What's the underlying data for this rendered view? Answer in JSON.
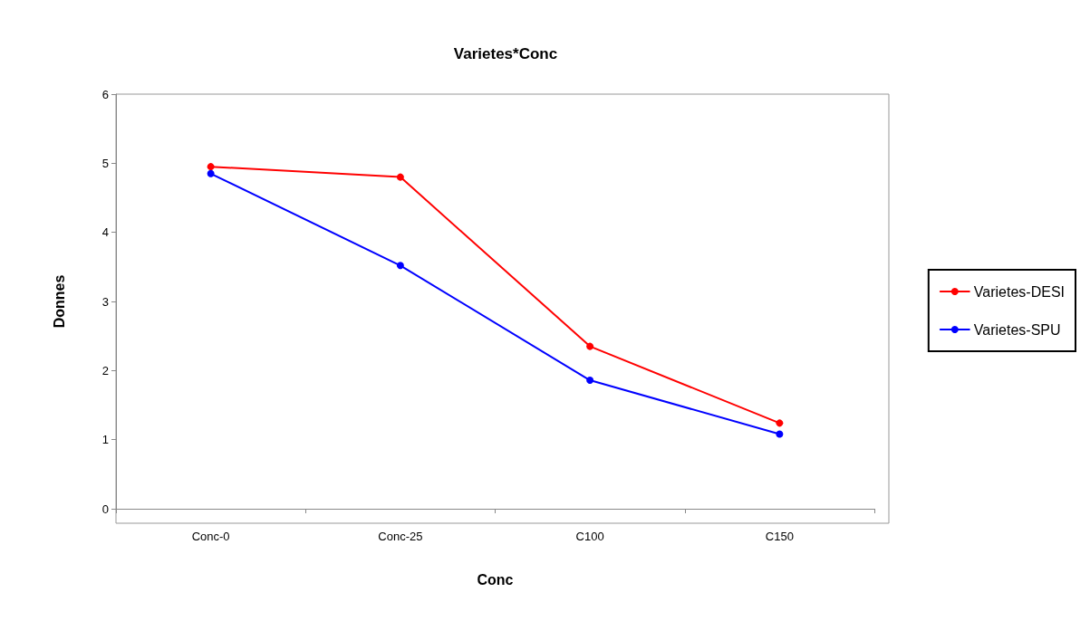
{
  "chart_data": {
    "type": "line",
    "title": "Varietes*Conc",
    "xlabel": "Conc",
    "ylabel": "Donnes",
    "categories": [
      "Conc-0",
      "Conc-25",
      "C100",
      "C150"
    ],
    "series": [
      {
        "name": "Varietes-DESI",
        "color": "#ff0000",
        "values": [
          4.95,
          4.8,
          2.35,
          1.24
        ]
      },
      {
        "name": "Varietes-SPU",
        "color": "#0000ff",
        "values": [
          4.85,
          3.52,
          1.86,
          1.08
        ]
      }
    ],
    "ylim": [
      0,
      6
    ],
    "yticks": [
      0,
      1,
      2,
      3,
      4,
      5,
      6
    ],
    "grid": false,
    "legend": "right",
    "marker": "circle",
    "line_style": "solid"
  }
}
